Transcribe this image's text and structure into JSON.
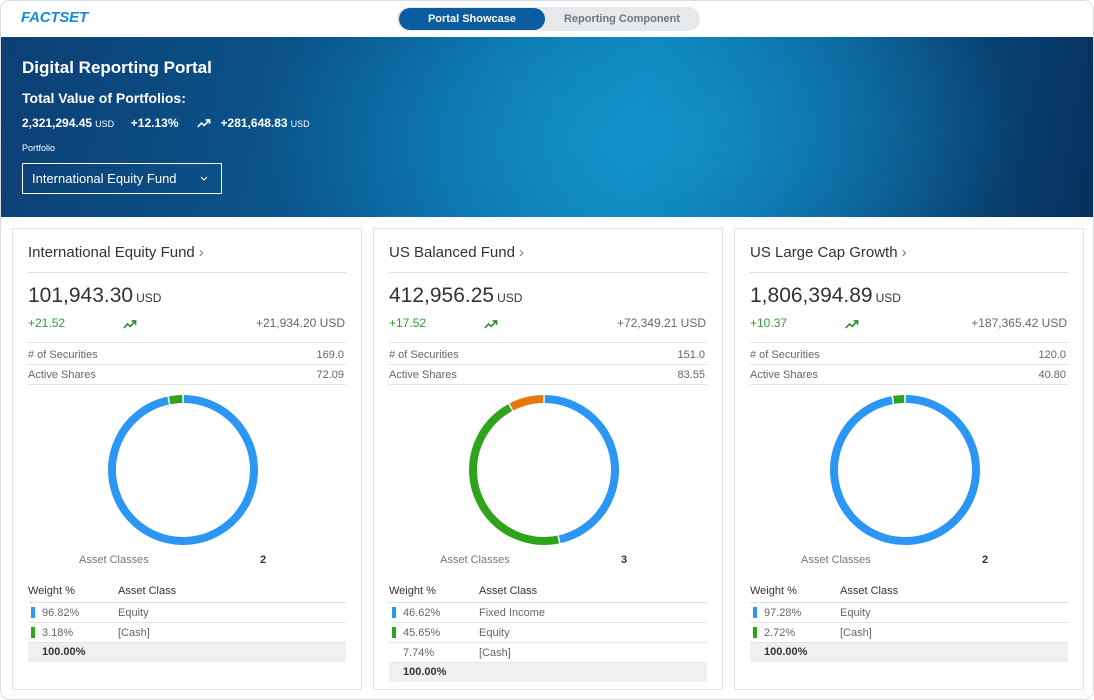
{
  "topbar": {
    "logo": "FACTSET",
    "tabs": [
      {
        "label": "Portal Showcase",
        "active": true
      },
      {
        "label": "Reporting Component",
        "active": false
      }
    ]
  },
  "hero": {
    "title": "Digital Reporting Portal",
    "subtitle": "Total Value of Portfolios:",
    "total_value": "2,321,294.45",
    "total_unit": "USD",
    "pct_change": "+12.13%",
    "abs_change": "+281,648.83",
    "abs_unit": "USD",
    "portfolio_label": "Portfolio",
    "portfolio_selected": "International Equity Fund"
  },
  "colors": {
    "accent_blue": "#2b96f3",
    "green": "#2ea41c",
    "orange": "#e5770c",
    "positive_text": "#2f9e2f",
    "toggle_active": "#0b5c9e"
  },
  "funds": [
    {
      "name": "International Equity Fund",
      "value": "101,943.30",
      "unit": "USD",
      "change": "+21.52",
      "abs_change": "+21,934.20 USD",
      "securities_label": "# of Securities",
      "securities": "169.0",
      "active_label": "Active Shares",
      "active_shares": "72.09",
      "asset_classes_label": "Asset Classes",
      "asset_classes_count": "2",
      "weight_header": "Weight %",
      "class_header": "Asset Class",
      "rows": [
        {
          "weight": "96.82%",
          "asset_class": "Equity",
          "color": "#2b96f3",
          "value": 96.82
        },
        {
          "weight": "3.18%",
          "asset_class": "[Cash]",
          "color": "#2ea41c",
          "value": 3.18
        }
      ],
      "total": "100.00%"
    },
    {
      "name": "US Balanced Fund",
      "value": "412,956.25",
      "unit": "USD",
      "change": "+17.52",
      "abs_change": "+72,349.21 USD",
      "securities_label": "# of Securities",
      "securities": "151.0",
      "active_label": "Active Shares",
      "active_shares": "83.55",
      "asset_classes_label": "Asset Classes",
      "asset_classes_count": "3",
      "weight_header": "Weight %",
      "class_header": "Asset Class",
      "rows": [
        {
          "weight": "46.62%",
          "asset_class": "Fixed Income",
          "color": "#2b96f3",
          "value": 46.62
        },
        {
          "weight": "45.65%",
          "asset_class": "Equity",
          "color": "#2ea41c",
          "value": 45.65
        },
        {
          "weight": "7.74%",
          "asset_class": "[Cash]",
          "color": "#e5770c",
          "value": 7.74
        }
      ],
      "total": "100.00%"
    },
    {
      "name": "US Large Cap Growth",
      "value": "1,806,394.89",
      "unit": "USD",
      "change": "+10.37",
      "abs_change": "+187,365.42 USD",
      "securities_label": "# of Securities",
      "securities": "120.0",
      "active_label": "Active Shares",
      "active_shares": "40.80",
      "asset_classes_label": "Asset Classes",
      "asset_classes_count": "2",
      "weight_header": "Weight %",
      "class_header": "Asset Class",
      "rows": [
        {
          "weight": "97.28%",
          "asset_class": "Equity",
          "color": "#2b96f3",
          "value": 97.28
        },
        {
          "weight": "2.72%",
          "asset_class": "[Cash]",
          "color": "#2ea41c",
          "value": 2.72
        }
      ],
      "total": "100.00%"
    }
  ]
}
